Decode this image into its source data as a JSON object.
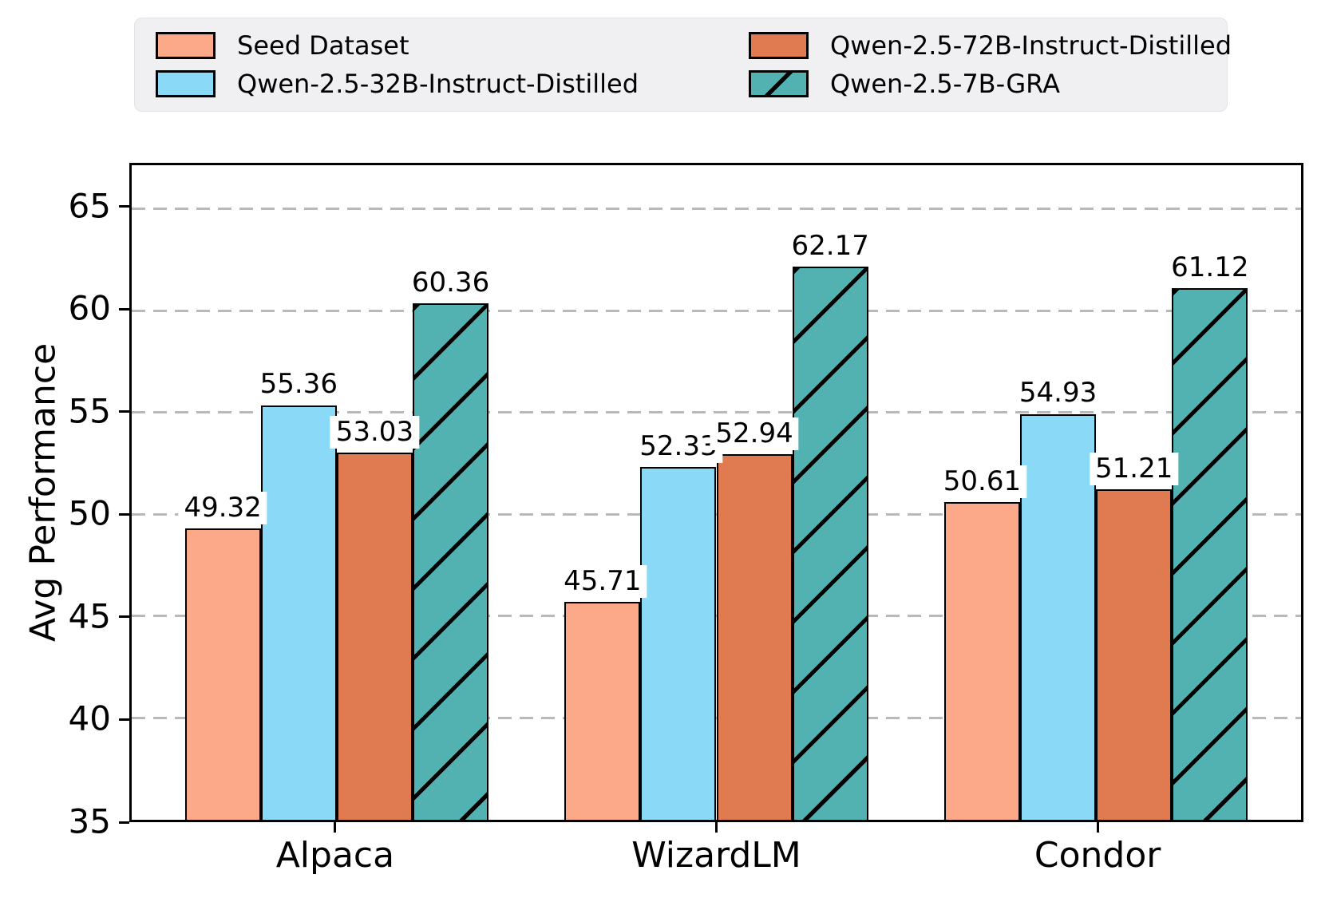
{
  "figure": {
    "background": "#ffffff"
  },
  "chart_data": {
    "type": "bar",
    "title": "",
    "xlabel": "",
    "ylabel": "Avg Performance",
    "categories": [
      "Alpaca",
      "WizardLM",
      "Condor"
    ],
    "series": [
      {
        "name": "Seed Dataset",
        "color": "#FCA98A",
        "hatch": "none",
        "values": [
          49.32,
          45.71,
          50.61
        ],
        "labels": [
          "49.32",
          "45.71",
          "50.61"
        ]
      },
      {
        "name": "Qwen-2.5-32B-Instruct-Distilled",
        "color": "#8ADAF7",
        "hatch": "none",
        "values": [
          55.36,
          52.33,
          54.93
        ],
        "labels": [
          "55.36",
          "52.33",
          "54.93"
        ]
      },
      {
        "name": "Qwen-2.5-72B-Instruct-Distilled",
        "color": "#E07A50",
        "hatch": "none",
        "values": [
          53.03,
          52.94,
          51.21
        ],
        "labels": [
          "53.03",
          "52.94",
          "51.21"
        ]
      },
      {
        "name": "Qwen-2.5-7B-GRA",
        "color": "#52B2B2",
        "hatch": "/",
        "values": [
          60.36,
          62.17,
          61.12
        ],
        "labels": [
          "60.36",
          "62.17",
          "61.12"
        ]
      }
    ],
    "ylim": [
      35,
      67.14
    ],
    "yticks": [
      35,
      40,
      45,
      50,
      55,
      60,
      65
    ],
    "grid": {
      "axis": "y",
      "style": "dashed",
      "color": "#b9b9b9"
    },
    "legend": {
      "position": "top",
      "columns": 2,
      "background": "#f0f0f2"
    },
    "bar_edge_color": "#000000"
  }
}
